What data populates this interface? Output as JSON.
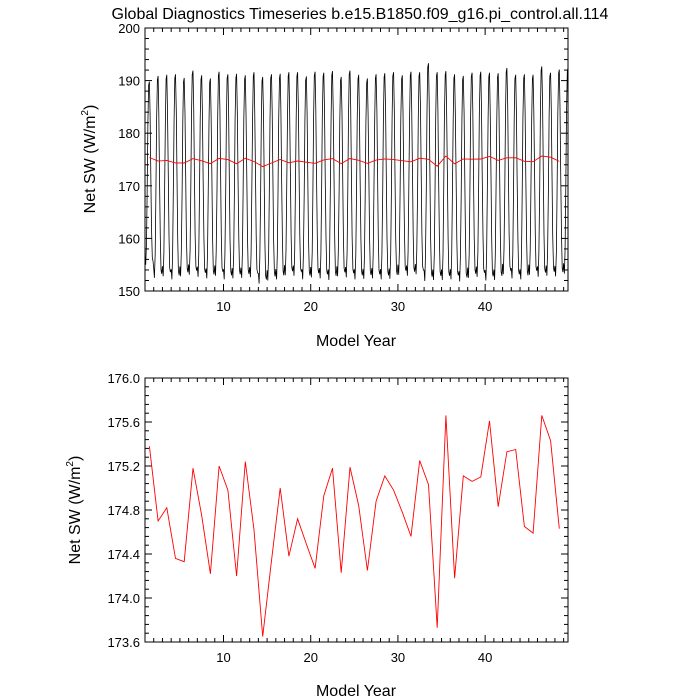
{
  "title": "Global Diagnostics Timeseries b.e15.B1850.f09_g16.pi_control.all.114",
  "colors": {
    "monthly_line": "#000000",
    "annual_line": "#ff0000",
    "frame": "#000000"
  },
  "chart_data": [
    {
      "type": "line",
      "xlabel": "Model Year",
      "ylabel_main": "Net SW (W/m",
      "ylabel_sup": "2",
      "ylabel_close": ")",
      "xlim": [
        1,
        49.5
      ],
      "ylim": [
        150,
        200
      ],
      "x_ticks": [
        10,
        20,
        30,
        40
      ],
      "y_ticks": [
        150,
        160,
        170,
        180,
        190,
        200
      ],
      "x_tick_labels": [
        "10",
        "20",
        "30",
        "40"
      ],
      "y_tick_labels": [
        "150",
        "160",
        "170",
        "180",
        "190",
        "200"
      ],
      "series": [
        {
          "kind": "monthly",
          "color": "#000000",
          "x_start": 1.0,
          "x_step": 0.0833333,
          "annual_max": [
            189.8,
            190.9,
            191.1,
            191.2,
            190.5,
            191.9,
            191.0,
            190.4,
            191.7,
            191.2,
            191.3,
            191.0,
            191.6,
            190.7,
            191.2,
            191.3,
            191.6,
            191.6,
            190.8,
            191.7,
            191.5,
            191.8,
            190.7,
            191.9,
            191.1,
            190.4,
            191.2,
            191.4,
            191.6,
            191.0,
            191.7,
            191.6,
            193.3,
            191.6,
            191.8,
            191.2,
            190.9,
            191.5,
            191.7,
            191.5,
            191.4,
            192.4,
            191.1,
            191.2,
            191.1,
            192.7,
            191.5,
            192.1,
            192.5
          ],
          "annual_min": [
            155.0,
            152.5,
            152.8,
            152.2,
            152.8,
            153.1,
            152.7,
            152.4,
            152.9,
            152.2,
            152.4,
            152.5,
            152.6,
            151.4,
            152.0,
            152.2,
            153.0,
            152.9,
            152.2,
            152.6,
            152.4,
            152.1,
            152.8,
            152.6,
            152.2,
            152.3,
            152.4,
            152.2,
            152.3,
            153.1,
            152.9,
            153.2,
            151.9,
            152.1,
            152.1,
            152.2,
            151.8,
            152.5,
            152.7,
            152.0,
            152.1,
            153.2,
            152.4,
            152.2,
            153.1,
            152.7,
            152.9,
            152.8,
            153.3
          ]
        },
        {
          "kind": "annual",
          "color": "#ff0000",
          "x": [
            1.5,
            2.5,
            3.5,
            4.5,
            5.5,
            6.5,
            7.5,
            8.5,
            9.5,
            10.5,
            11.5,
            12.5,
            13.5,
            14.5,
            15.5,
            16.5,
            17.5,
            18.5,
            19.5,
            20.5,
            21.5,
            22.5,
            23.5,
            24.5,
            25.5,
            26.5,
            27.5,
            28.5,
            29.5,
            30.5,
            31.5,
            32.5,
            33.5,
            34.5,
            35.5,
            36.5,
            37.5,
            38.5,
            39.5,
            40.5,
            41.5,
            42.5,
            43.5,
            44.5,
            45.5,
            46.5,
            47.5,
            48.5
          ],
          "values": [
            175.38,
            174.7,
            174.82,
            174.36,
            174.33,
            175.18,
            174.75,
            174.22,
            175.2,
            174.98,
            174.2,
            175.24,
            174.62,
            173.65,
            174.34,
            175.0,
            174.38,
            174.72,
            174.49,
            174.27,
            174.93,
            175.18,
            174.23,
            175.19,
            174.84,
            174.25,
            174.88,
            175.11,
            174.98,
            174.78,
            174.56,
            175.25,
            175.03,
            173.73,
            175.66,
            174.18,
            175.11,
            175.06,
            175.1,
            175.61,
            174.83,
            175.33,
            175.35,
            174.65,
            174.59,
            175.66,
            175.43,
            174.63
          ]
        }
      ]
    },
    {
      "type": "line",
      "xlabel": "Model Year",
      "ylabel_main": "Net SW (W/m",
      "ylabel_sup": "2",
      "ylabel_close": ")",
      "xlim": [
        1,
        49.5
      ],
      "ylim": [
        173.6,
        176.0
      ],
      "x_ticks": [
        10,
        20,
        30,
        40
      ],
      "y_ticks": [
        173.6,
        174.0,
        174.4,
        174.8,
        175.2,
        175.6,
        176.0
      ],
      "x_tick_labels": [
        "10",
        "20",
        "30",
        "40"
      ],
      "y_tick_labels": [
        "173.6",
        "174.0",
        "174.4",
        "174.8",
        "175.2",
        "175.6",
        "176.0"
      ],
      "series": [
        {
          "kind": "annual",
          "color": "#ff0000",
          "x": [
            1.5,
            2.5,
            3.5,
            4.5,
            5.5,
            6.5,
            7.5,
            8.5,
            9.5,
            10.5,
            11.5,
            12.5,
            13.5,
            14.5,
            15.5,
            16.5,
            17.5,
            18.5,
            19.5,
            20.5,
            21.5,
            22.5,
            23.5,
            24.5,
            25.5,
            26.5,
            27.5,
            28.5,
            29.5,
            30.5,
            31.5,
            32.5,
            33.5,
            34.5,
            35.5,
            36.5,
            37.5,
            38.5,
            39.5,
            40.5,
            41.5,
            42.5,
            43.5,
            44.5,
            45.5,
            46.5,
            47.5,
            48.5
          ],
          "values": [
            175.38,
            174.7,
            174.82,
            174.36,
            174.33,
            175.18,
            174.75,
            174.22,
            175.2,
            174.98,
            174.2,
            175.24,
            174.62,
            173.65,
            174.34,
            175.0,
            174.38,
            174.72,
            174.49,
            174.27,
            174.93,
            175.18,
            174.23,
            175.19,
            174.84,
            174.25,
            174.88,
            175.11,
            174.98,
            174.78,
            174.56,
            175.25,
            175.03,
            173.73,
            175.66,
            174.18,
            175.11,
            175.06,
            175.1,
            175.61,
            174.83,
            175.33,
            175.35,
            174.65,
            174.59,
            175.66,
            175.43,
            174.63
          ]
        }
      ]
    }
  ]
}
